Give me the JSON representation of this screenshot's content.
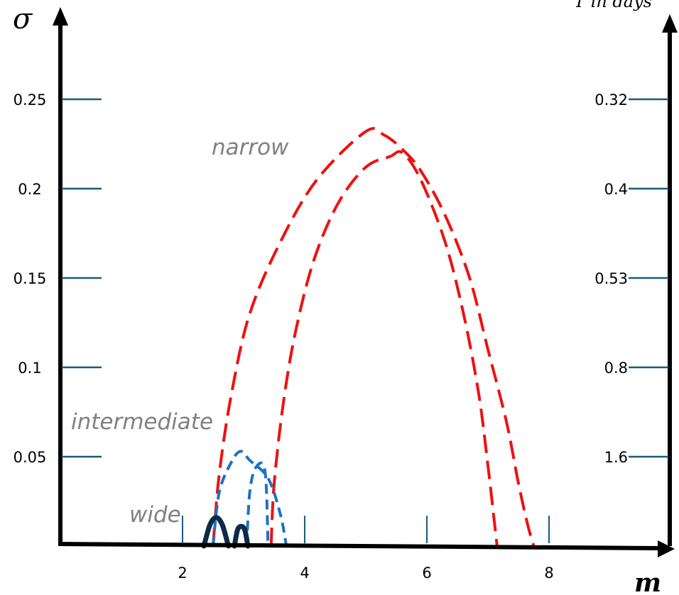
{
  "chart_data": {
    "type": "line",
    "title": "",
    "xlabel": "m",
    "ylabel": "σ",
    "y2label": "T in days",
    "xlim": [
      0,
      10
    ],
    "ylim": [
      0,
      0.27
    ],
    "x_ticks": [
      "2",
      "4",
      "6",
      "8"
    ],
    "y_ticks": [
      "0.05",
      "0.1",
      "0.15",
      "0.2",
      "0.25"
    ],
    "y2_ticks": [
      "1.6",
      "0.8",
      "0.53",
      "0.4",
      "0.32"
    ],
    "grid": false,
    "legend": "none",
    "annotations": [
      "narrow",
      "intermediate",
      "wide"
    ],
    "regions": [
      {
        "label": "narrow",
        "style": "dashed",
        "color": "#ee1111",
        "outer": {
          "x": [
            2.5,
            2.6,
            2.8,
            3.1,
            3.6,
            4.2,
            5.0,
            5.3,
            5.6,
            5.9,
            6.3,
            6.7,
            7.0,
            7.3,
            7.5,
            7.65,
            7.75
          ],
          "y": [
            0,
            0.04,
            0.085,
            0.13,
            0.17,
            0.205,
            0.232,
            0.23,
            0.222,
            0.21,
            0.185,
            0.15,
            0.11,
            0.07,
            0.035,
            0.012,
            0
          ]
        },
        "inner": {
          "x": [
            3.45,
            3.5,
            3.65,
            3.85,
            4.15,
            4.55,
            5.0,
            5.4,
            5.6,
            5.9,
            6.3,
            6.6,
            6.85,
            7.0,
            7.1,
            7.15
          ],
          "y": [
            0,
            0.035,
            0.08,
            0.12,
            0.16,
            0.192,
            0.212,
            0.218,
            0.22,
            0.205,
            0.17,
            0.13,
            0.085,
            0.045,
            0.015,
            0
          ]
        }
      },
      {
        "label": "intermediate",
        "style": "dashed",
        "color": "#1d72c4",
        "outer": {
          "x": [
            2.5,
            2.6,
            2.8,
            2.95,
            3.1,
            3.4,
            3.6,
            3.7
          ],
          "y": [
            0,
            0.03,
            0.047,
            0.053,
            0.048,
            0.038,
            0.018,
            0
          ]
        },
        "inner": {
          "x": [
            3.05,
            3.1,
            3.2,
            3.35,
            3.4
          ],
          "y": [
            0,
            0.03,
            0.044,
            0.042,
            0
          ]
        }
      },
      {
        "label": "wide",
        "style": "solid",
        "color": "#0d2b45",
        "loops": [
          {
            "x": [
              2.35,
              2.45,
              2.55,
              2.65,
              2.75
            ],
            "y": [
              0,
              0.012,
              0.016,
              0.012,
              0
            ]
          },
          {
            "x": [
              2.85,
              2.9,
              2.96,
              3.02,
              3.07
            ],
            "y": [
              0,
              0.009,
              0.011,
              0.009,
              0
            ]
          }
        ]
      }
    ]
  }
}
